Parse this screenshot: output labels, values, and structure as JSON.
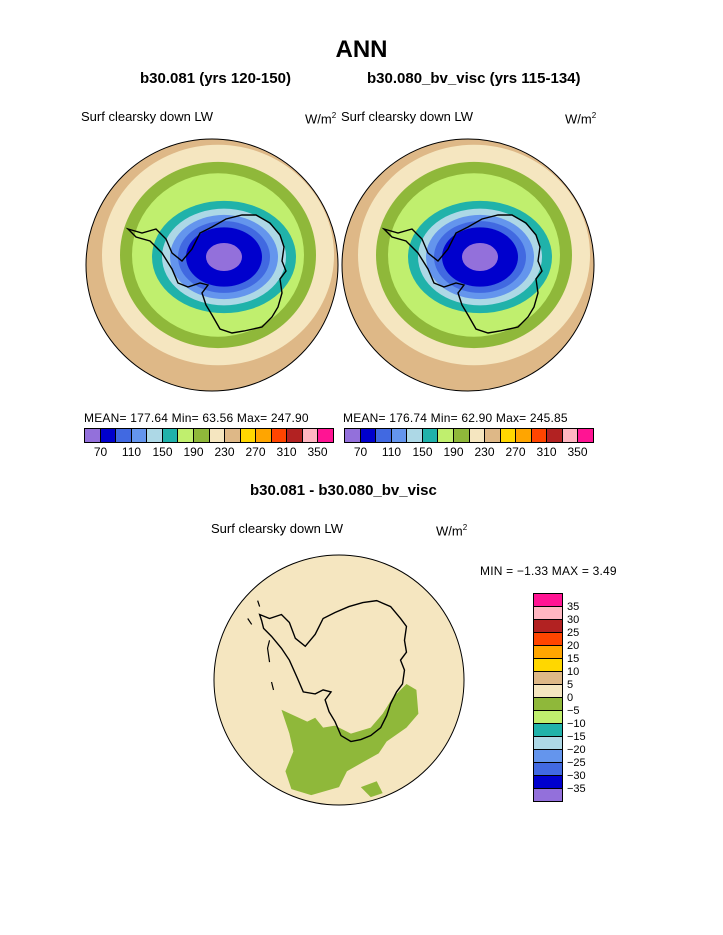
{
  "title": "ANN",
  "panels": [
    {
      "case_title": "b30.081 (yrs 120-150)",
      "label": "Surf clearsky down LW",
      "unit_base": "W/m",
      "unit_exp": "2",
      "stats": "MEAN= 177.64  Min=  63.56  Max= 247.90",
      "ticks": [
        "70",
        "110",
        "150",
        "190",
        "230",
        "270",
        "310",
        "350"
      ]
    },
    {
      "case_title": "b30.080_bv_visc (yrs 115-134)",
      "label": "Surf clearsky down LW",
      "unit_base": "W/m",
      "unit_exp": "2",
      "stats": "MEAN= 176.74  Min=  62.90  Max= 245.85",
      "ticks": [
        "70",
        "110",
        "150",
        "190",
        "230",
        "270",
        "310",
        "350"
      ]
    }
  ],
  "diff_panel": {
    "title": "b30.081 - b30.080_bv_visc",
    "label": "Surf clearsky down LW",
    "unit_base": "W/m",
    "unit_exp": "2",
    "stats": "MIN =   −1.33 MAX =    3.49",
    "ticks": [
      "35",
      "30",
      "25",
      "20",
      "15",
      "10",
      "5",
      "0",
      "−5",
      "−10",
      "−15",
      "−20",
      "−25",
      "−30",
      "−35"
    ]
  },
  "colorbar_colors": [
    "#9370db",
    "#0000cd",
    "#4169e1",
    "#6495ed",
    "#add8e6",
    "#20b2aa",
    "#c0ef6e",
    "#8fb83a",
    "#f5e6c0",
    "#deb887",
    "#ffd700",
    "#ffa500",
    "#ff4500",
    "#b22222",
    "#ffb6c1",
    "#ff1493"
  ],
  "diff_colorbar_colors": [
    "#ff1493",
    "#ffb6c1",
    "#b22222",
    "#ff4500",
    "#ffa500",
    "#ffd700",
    "#deb887",
    "#f5e6c0",
    "#8fb83a",
    "#c0ef6e",
    "#20b2aa",
    "#add8e6",
    "#6495ed",
    "#4169e1",
    "#0000cd",
    "#9370db"
  ]
}
